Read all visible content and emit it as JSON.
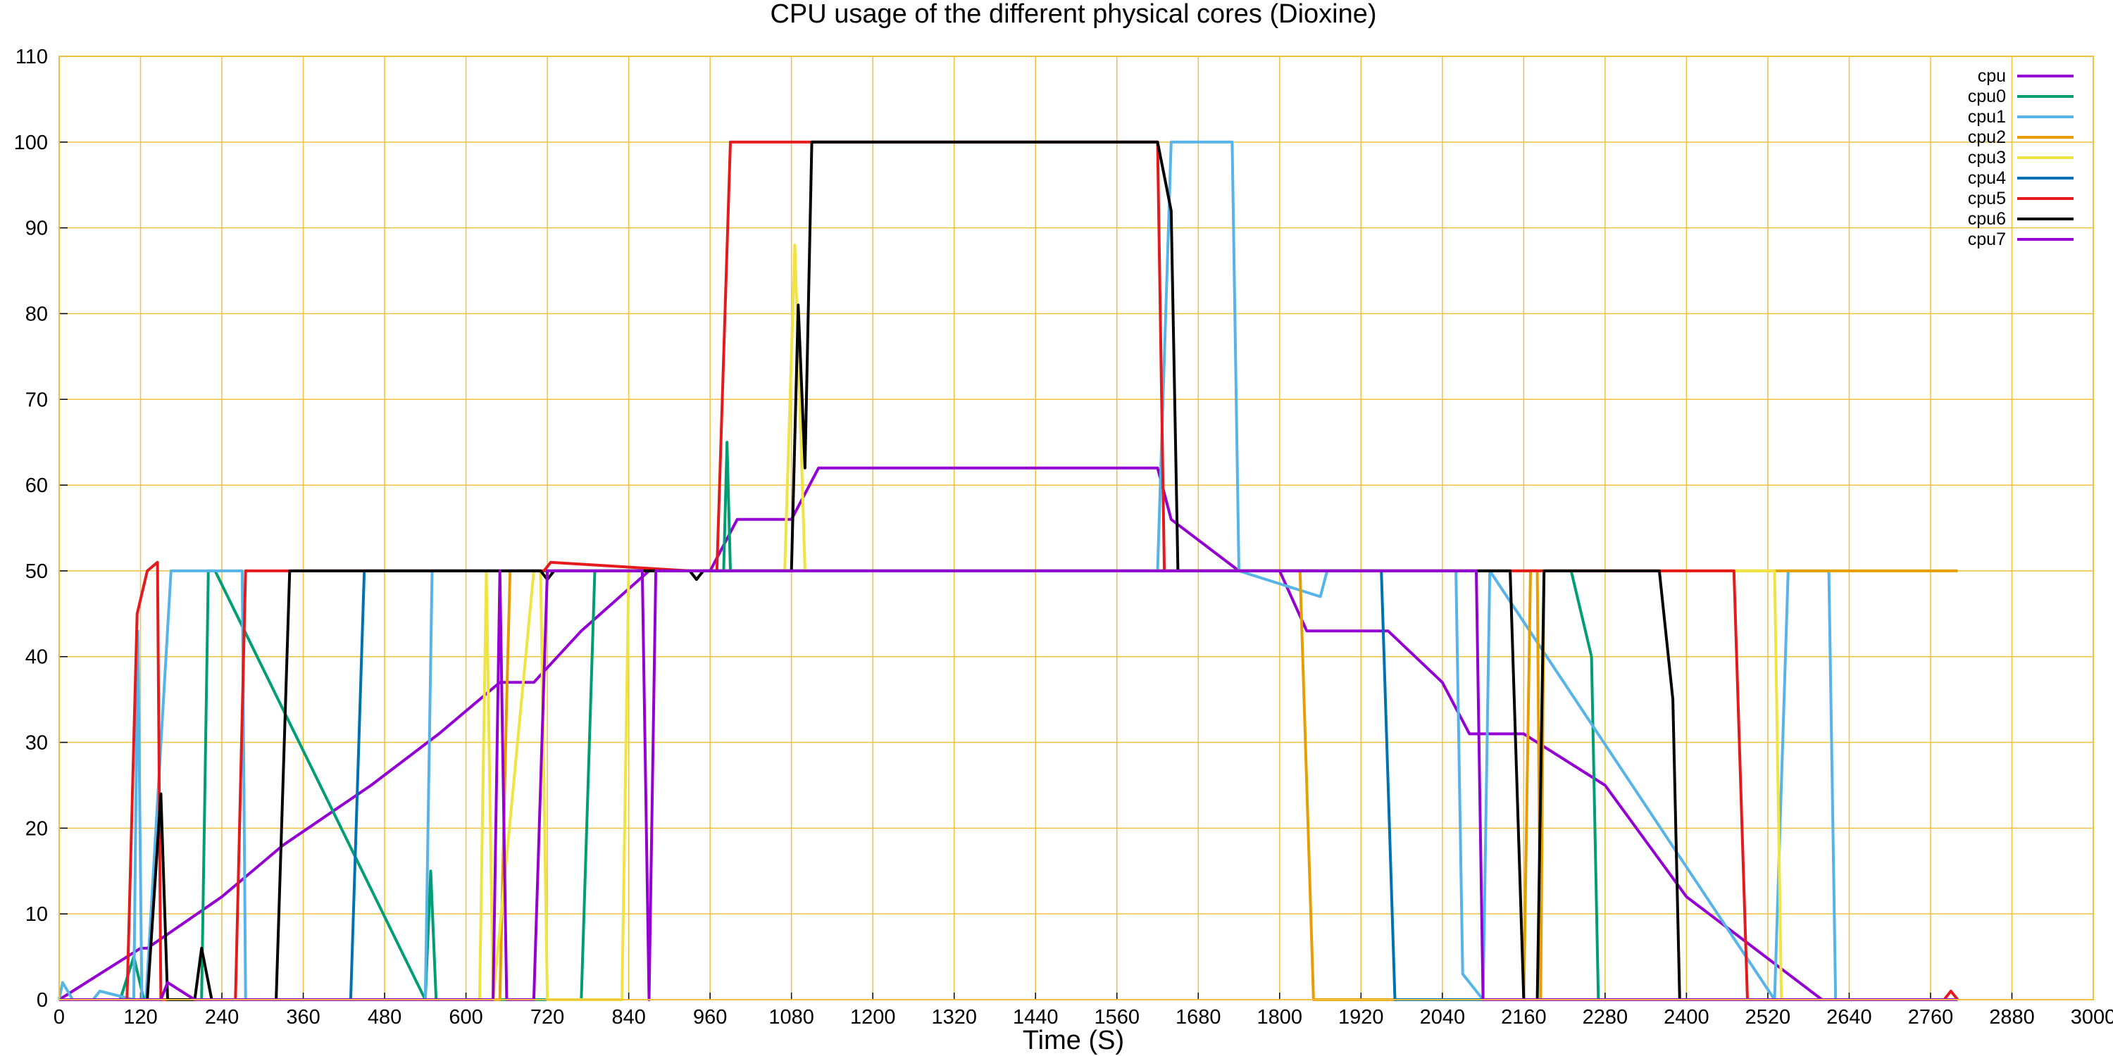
{
  "chart_data": {
    "type": "line",
    "title": "CPU usage of the different physical cores (Dioxine)",
    "xlabel": "Time (S)",
    "ylabel": "",
    "xlim": [
      0,
      3000
    ],
    "ylim": [
      0,
      110
    ],
    "xticks": [
      0,
      120,
      240,
      360,
      480,
      600,
      720,
      840,
      960,
      1080,
      1200,
      1320,
      1440,
      1560,
      1680,
      1800,
      1920,
      2040,
      2160,
      2280,
      2400,
      2520,
      2640,
      2760,
      2880,
      3000
    ],
    "yticks": [
      0,
      10,
      20,
      30,
      40,
      50,
      60,
      70,
      80,
      90,
      100,
      110
    ],
    "grid": true,
    "grid_color": "#f0c040",
    "legend_position": "top-right",
    "series": [
      {
        "name": "cpu",
        "color": "#9400d3",
        "x": [
          0,
          120,
          130,
          240,
          330,
          460,
          560,
          650,
          700,
          770,
          870,
          960,
          1000,
          1080,
          1120,
          1620,
          1640,
          1740,
          1800,
          1840,
          1960,
          2040,
          2080,
          2160,
          2280,
          2400,
          2500,
          2600,
          2680,
          2800
        ],
        "y": [
          0,
          6,
          6,
          12,
          18,
          25,
          31,
          37,
          37,
          43,
          50,
          50,
          56,
          56,
          62,
          62,
          56,
          50,
          50,
          43,
          43,
          37,
          31,
          31,
          25,
          12,
          6,
          0,
          0,
          0
        ]
      },
      {
        "name": "cpu0",
        "color": "#009e73",
        "x": [
          0,
          90,
          110,
          125,
          140,
          210,
          220,
          230,
          540,
          548,
          556,
          770,
          790,
          980,
          985,
          990,
          2230,
          2260,
          2270,
          2800
        ],
        "y": [
          0,
          0,
          5,
          0,
          0,
          0,
          50,
          50,
          0,
          15,
          0,
          0,
          50,
          50,
          65,
          50,
          50,
          40,
          0,
          0
        ]
      },
      {
        "name": "cpu1",
        "color": "#56b4e9",
        "x": [
          0,
          5,
          20,
          50,
          60,
          110,
          116,
          122,
          128,
          165,
          270,
          275,
          280,
          540,
          550,
          555,
          990,
          1620,
          1640,
          1730,
          1740,
          1860,
          1870,
          2060,
          2070,
          2100,
          2110,
          2530,
          2550,
          2610,
          2620,
          2800
        ],
        "y": [
          0,
          2,
          0,
          0,
          1,
          0,
          43,
          0,
          0,
          50,
          50,
          0,
          0,
          0,
          50,
          50,
          50,
          50,
          100,
          100,
          50,
          47,
          50,
          50,
          3,
          0,
          50,
          0,
          50,
          50,
          0,
          0
        ]
      },
      {
        "name": "cpu2",
        "color": "#e69f00",
        "x": [
          0,
          650,
          660,
          665,
          670,
          1800,
          1830,
          1850,
          1870,
          2160,
          2170,
          2180,
          2185,
          2190,
          2800
        ],
        "y": [
          0,
          0,
          35,
          50,
          50,
          50,
          50,
          0,
          0,
          0,
          50,
          50,
          0,
          50,
          50
        ]
      },
      {
        "name": "cpu3",
        "color": "#f0e442",
        "x": [
          0,
          620,
          630,
          640,
          700,
          710,
          720,
          830,
          840,
          1070,
          1085,
          1100,
          1110,
          2520,
          2530,
          2540,
          2800
        ],
        "y": [
          0,
          0,
          50,
          0,
          50,
          50,
          0,
          0,
          50,
          50,
          88,
          50,
          50,
          50,
          50,
          0,
          0
        ]
      },
      {
        "name": "cpu4",
        "color": "#0072b2",
        "x": [
          0,
          430,
          450,
          1950,
          1970,
          2800
        ],
        "y": [
          0,
          0,
          50,
          50,
          0,
          0
        ]
      },
      {
        "name": "cpu5",
        "color": "#e41a1c",
        "x": [
          0,
          100,
          115,
          130,
          145,
          150,
          165,
          260,
          275,
          715,
          725,
          930,
          940,
          970,
          990,
          1620,
          1630,
          1640,
          2470,
          2490,
          2780,
          2790,
          2800
        ],
        "y": [
          0,
          0,
          45,
          50,
          51,
          0,
          0,
          0,
          50,
          50,
          51,
          50,
          50,
          50,
          100,
          100,
          50,
          50,
          50,
          0,
          0,
          1,
          0
        ]
      },
      {
        "name": "cpu6",
        "color": "#000000",
        "x": [
          0,
          130,
          150,
          160,
          200,
          210,
          225,
          320,
          340,
          710,
          720,
          730,
          930,
          940,
          950,
          1080,
          1090,
          1100,
          1110,
          1620,
          1640,
          1650,
          2140,
          2160,
          2180,
          2190,
          2200,
          2360,
          2380,
          2390,
          2800
        ],
        "y": [
          0,
          0,
          24,
          0,
          0,
          6,
          0,
          0,
          50,
          50,
          49,
          50,
          50,
          49,
          50,
          50,
          81,
          62,
          100,
          100,
          92,
          50,
          50,
          0,
          0,
          50,
          50,
          50,
          35,
          0,
          0
        ]
      },
      {
        "name": "cpu7",
        "color": "#9400d3",
        "x": [
          0,
          150,
          160,
          200,
          640,
          650,
          660,
          700,
          720,
          860,
          870,
          880,
          2090,
          2100,
          2110,
          2800
        ],
        "y": [
          0,
          0,
          2,
          0,
          0,
          50,
          0,
          0,
          50,
          50,
          0,
          50,
          50,
          0,
          0,
          0
        ]
      }
    ]
  }
}
